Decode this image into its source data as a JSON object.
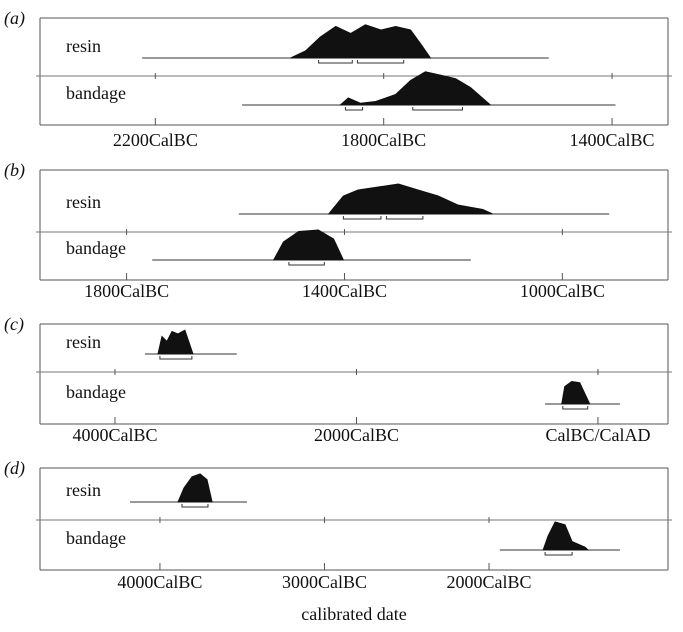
{
  "chart_data": [
    {
      "type": "calibration",
      "label": "(a)",
      "xlim": [
        -2402,
        -1302
      ],
      "xticks": [
        {
          "value": -2200,
          "label": "2200CalBC"
        },
        {
          "value": -1800,
          "label": "1800CalBC"
        },
        {
          "value": -1400,
          "label": "1400CalBC"
        }
      ],
      "series": [
        {
          "name": "resin",
          "range": [
            -2223,
            -1511
          ],
          "density": [
            [
              -1963,
              0
            ],
            [
              -1937,
              0.2
            ],
            [
              -1911,
              0.6
            ],
            [
              -1884,
              0.9
            ],
            [
              -1858,
              0.7
            ],
            [
              -1832,
              0.95
            ],
            [
              -1805,
              0.8
            ],
            [
              -1779,
              0.9
            ],
            [
              -1753,
              0.8
            ],
            [
              -1735,
              0.4
            ],
            [
              -1718,
              0
            ]
          ],
          "hpd": [
            [
              -1914,
              -1855
            ],
            [
              -1846,
              -1765
            ]
          ]
        },
        {
          "name": "bandage",
          "range": [
            -2048,
            -1394
          ],
          "density": [
            [
              -1876,
              0
            ],
            [
              -1862,
              0.2
            ],
            [
              -1841,
              0.05
            ],
            [
              -1814,
              0.1
            ],
            [
              -1779,
              0.3
            ],
            [
              -1753,
              0.7
            ],
            [
              -1727,
              0.95
            ],
            [
              -1700,
              0.85
            ],
            [
              -1674,
              0.75
            ],
            [
              -1648,
              0.5
            ],
            [
              -1613,
              0
            ]
          ],
          "hpd": [
            [
              -1867,
              -1837
            ],
            [
              -1749,
              -1662
            ]
          ]
        }
      ]
    },
    {
      "type": "calibration",
      "label": "(b)",
      "xlim": [
        -1959,
        -806
      ],
      "xticks": [
        {
          "value": -1800,
          "label": "1800CalBC"
        },
        {
          "value": -1400,
          "label": "1400CalBC"
        },
        {
          "value": -1000,
          "label": "1000CalBC"
        }
      ],
      "series": [
        {
          "name": "resin",
          "range": [
            -1594,
            -914
          ],
          "density": [
            [
              -1429,
              0
            ],
            [
              -1402,
              0.6
            ],
            [
              -1375,
              0.8
            ],
            [
              -1338,
              0.9
            ],
            [
              -1301,
              1
            ],
            [
              -1265,
              0.8
            ],
            [
              -1228,
              0.6
            ],
            [
              -1192,
              0.3
            ],
            [
              -1146,
              0.15
            ],
            [
              -1128,
              0
            ]
          ],
          "hpd": [
            [
              -1402,
              -1333
            ],
            [
              -1323,
              -1256
            ]
          ]
        },
        {
          "name": "bandage",
          "range": [
            -1753,
            -1168
          ],
          "density": [
            [
              -1530,
              0
            ],
            [
              -1512,
              0.6
            ],
            [
              -1484,
              0.95
            ],
            [
              -1448,
              1
            ],
            [
              -1420,
              0.7
            ],
            [
              -1402,
              0
            ]
          ],
          "hpd": [
            [
              -1502,
              -1437
            ]
          ]
        }
      ]
    },
    {
      "type": "calibration",
      "label": "(c)",
      "xlim": [
        -4621,
        580
      ],
      "xticks": [
        {
          "value": -4000,
          "label": "4000CalBC"
        },
        {
          "value": -2000,
          "label": "2000CalBC"
        },
        {
          "value": 0,
          "label": "CalBC/CalAD"
        }
      ],
      "series": [
        {
          "name": "resin",
          "range": [
            -3752,
            -2991
          ],
          "density": [
            [
              -3644,
              0
            ],
            [
              -3611,
              0.7
            ],
            [
              -3570,
              0.5
            ],
            [
              -3528,
              0.9
            ],
            [
              -3479,
              0.8
            ],
            [
              -3421,
              0.95
            ],
            [
              -3354,
              0
            ]
          ],
          "hpd": [
            [
              -3628,
              -3363
            ]
          ]
        },
        {
          "name": "bandage",
          "range": [
            -439,
            182
          ],
          "density": [
            [
              -300,
              0
            ],
            [
              -275,
              0.7
            ],
            [
              -217,
              0.9
            ],
            [
              -151,
              0.85
            ],
            [
              -68,
              0
            ]
          ],
          "hpd": [
            [
              -291,
              -85
            ]
          ]
        }
      ]
    },
    {
      "type": "calibration",
      "label": "(d)",
      "xlim": [
        -4729,
        -912
      ],
      "xlabel": "calibrated date",
      "xticks": [
        {
          "value": -4000,
          "label": "4000CalBC"
        },
        {
          "value": -3000,
          "label": "3000CalBC"
        },
        {
          "value": -2000,
          "label": "2000CalBC"
        }
      ],
      "series": [
        {
          "name": "resin",
          "range": [
            -4182,
            -3471
          ],
          "density": [
            [
              -3890,
              0
            ],
            [
              -3854,
              0.5
            ],
            [
              -3805,
              0.9
            ],
            [
              -3756,
              1
            ],
            [
              -3714,
              0.8
            ],
            [
              -3683,
              0
            ]
          ],
          "hpd": [
            [
              -3866,
              -3708
            ]
          ]
        },
        {
          "name": "bandage",
          "range": [
            -1934,
            -1204
          ],
          "density": [
            [
              -1671,
              0
            ],
            [
              -1641,
              0.5
            ],
            [
              -1598,
              1
            ],
            [
              -1538,
              0.9
            ],
            [
              -1495,
              0.3
            ],
            [
              -1416,
              0.1
            ],
            [
              -1398,
              0
            ]
          ],
          "hpd": [
            [
              -1659,
              -1495
            ]
          ]
        }
      ]
    }
  ]
}
